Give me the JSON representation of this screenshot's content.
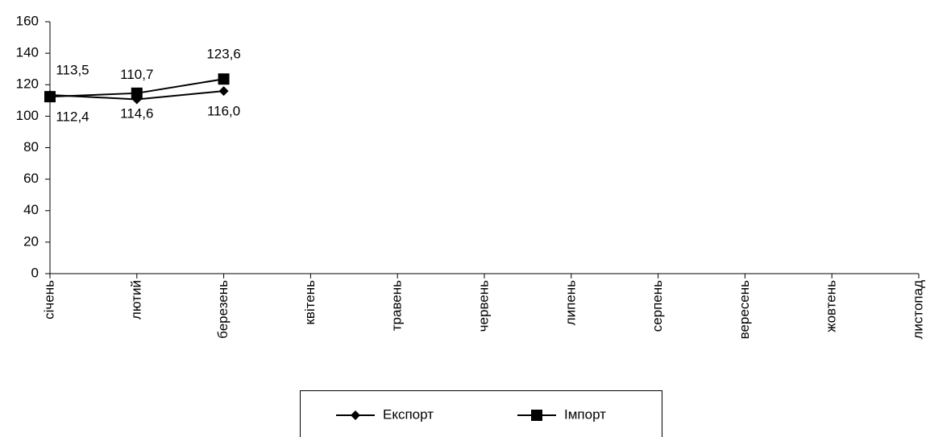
{
  "chart_data": {
    "type": "line",
    "categories": [
      "січень",
      "лютий",
      "березень",
      "квітень",
      "травень",
      "червень",
      "липень",
      "серпень",
      "вересень",
      "жовтень",
      "листопад"
    ],
    "series": [
      {
        "name": "Експорт",
        "color": "#000000",
        "marker": "diamond",
        "values": [
          113.5,
          110.7,
          116.0,
          null,
          null,
          null,
          null,
          null,
          null,
          null,
          null
        ],
        "value_labels": [
          "113,5",
          "110,7",
          "116,0",
          null,
          null,
          null,
          null,
          null,
          null,
          null,
          null
        ]
      },
      {
        "name": "Імпорт",
        "color": "#000000",
        "marker": "square",
        "values": [
          112.4,
          114.6,
          123.6,
          null,
          null,
          null,
          null,
          null,
          null,
          null,
          null
        ],
        "value_labels": [
          "112,4",
          "114,6",
          "123,6",
          null,
          null,
          null,
          null,
          null,
          null,
          null,
          null
        ]
      }
    ],
    "ylim": [
      0,
      160
    ],
    "yticks": [
      0,
      20,
      40,
      60,
      80,
      100,
      120,
      140,
      160
    ],
    "grid": false,
    "legend": "bottom"
  }
}
